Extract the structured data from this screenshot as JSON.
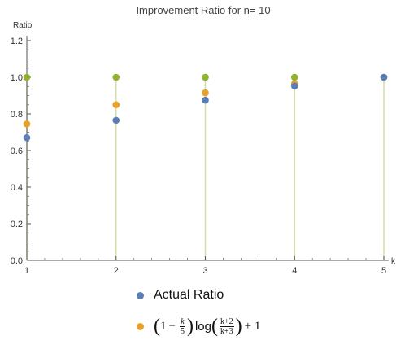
{
  "chart_data": {
    "type": "scatter",
    "title": "Improvement Ratio for n= 10",
    "xlabel": "k",
    "ylabel": "Ratio",
    "x": [
      1,
      2,
      3,
      4,
      5
    ],
    "xlim": [
      1,
      5
    ],
    "ylim": [
      0,
      1.2
    ],
    "xticks": [
      "1",
      "2",
      "3",
      "4",
      "5"
    ],
    "yticks": [
      "0.0",
      "0.2",
      "0.4",
      "0.6",
      "0.8",
      "1.0",
      "1.2"
    ],
    "grid": false,
    "legend_position": "bottom",
    "series": [
      {
        "name": "Actual Ratio",
        "color": "#5b7fb5",
        "values": [
          0.67,
          0.765,
          0.875,
          0.952,
          1.0
        ]
      },
      {
        "name": "(1 − k/5) log((k+2)/(k+3)) + 1",
        "color": "#e8a02a",
        "values": [
          0.745,
          0.85,
          0.915,
          0.965,
          1.0
        ]
      },
      {
        "name": "",
        "color": "#8fb32f",
        "values": [
          1.0,
          1.0,
          1.0,
          1.0,
          1.0
        ]
      }
    ],
    "stem_color": "#d7dfa9"
  },
  "legend": {
    "actual_label": "Actual Ratio",
    "formula": {
      "one": "1",
      "minus": "−",
      "frac1_num": "k",
      "frac1_den": "5",
      "log": "log",
      "frac2_num": "k+2",
      "frac2_den": "k+3",
      "plus_one": "+ 1"
    }
  }
}
